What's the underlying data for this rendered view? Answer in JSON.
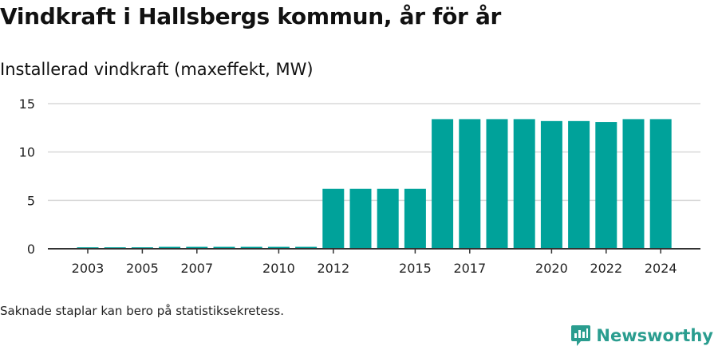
{
  "title": "Vindkraft i Hallsbergs kommun, år för år",
  "subtitle": "Installerad vindkraft (maxeffekt, MW)",
  "footnote": "Saknade staplar kan bero på statistiksekretess.",
  "brand": {
    "name": "Newsworthy",
    "icon": "newsworthy-logo-icon"
  },
  "colors": {
    "bar": "#00a29a",
    "grid": "#d9d9d9",
    "axis": "#333333",
    "brand": "#2a9d8f"
  },
  "chart_data": {
    "type": "bar",
    "title": "Vindkraft i Hallsbergs kommun, år för år",
    "subtitle": "Installerad vindkraft (maxeffekt, MW)",
    "xlabel": "",
    "ylabel": "",
    "categories": [
      "2003",
      "2004",
      "2005",
      "2006",
      "2007",
      "2008",
      "2009",
      "2010",
      "2011",
      "2012",
      "2013",
      "2014",
      "2015",
      "2016",
      "2017",
      "2018",
      "2019",
      "2020",
      "2021",
      "2022",
      "2023",
      "2024"
    ],
    "values": [
      0.15,
      0.15,
      0.15,
      0.2,
      0.2,
      0.2,
      0.2,
      0.2,
      0.2,
      6.2,
      6.2,
      6.2,
      6.2,
      13.4,
      13.4,
      13.4,
      13.4,
      13.2,
      13.2,
      13.1,
      13.4,
      13.4
    ],
    "x_tick_labels": [
      "2003",
      "2005",
      "2007",
      "2010",
      "2012",
      "2015",
      "2017",
      "2020",
      "2022",
      "2024"
    ],
    "y_ticks": [
      0,
      5,
      10,
      15
    ],
    "ylim": [
      0,
      15
    ],
    "grid": true,
    "legend": "none"
  }
}
